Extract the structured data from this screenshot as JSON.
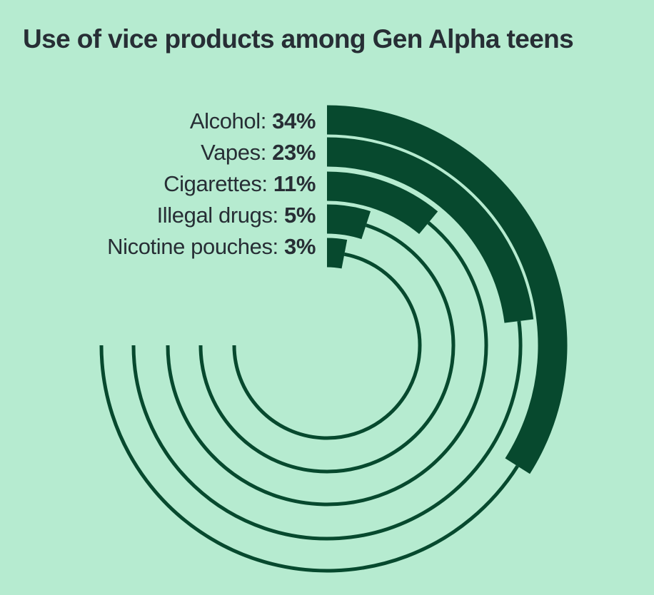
{
  "title": "Use of vice products among Gen Alpha teens",
  "legend": [
    {
      "prefix": "Alcohol: ",
      "value": "34%"
    },
    {
      "prefix": "Vapes: ",
      "value": "23%"
    },
    {
      "prefix": "Cigarettes: ",
      "value": "11%"
    },
    {
      "prefix": "Illegal drugs: ",
      "value": "5%"
    },
    {
      "prefix": "Nicotine pouches: ",
      "value": "3%"
    }
  ],
  "chart_data": {
    "type": "bar",
    "subtype": "radial-bar",
    "title": "Use of vice products among Gen Alpha teens",
    "categories": [
      "Alcohol",
      "Vapes",
      "Cigarettes",
      "Illegal drugs",
      "Nicotine pouches"
    ],
    "values": [
      34,
      23,
      11,
      5,
      3
    ],
    "unit": "%",
    "value_range": [
      0,
      100
    ],
    "angle_start_deg": 0,
    "track_end_deg": 270,
    "direction": "clockwise",
    "legend_position": "left-of-rings",
    "grid": false
  },
  "colors": {
    "background": "#b6ebd0",
    "bar": "#07492e",
    "track": "#07492e",
    "text": "#272e35"
  }
}
